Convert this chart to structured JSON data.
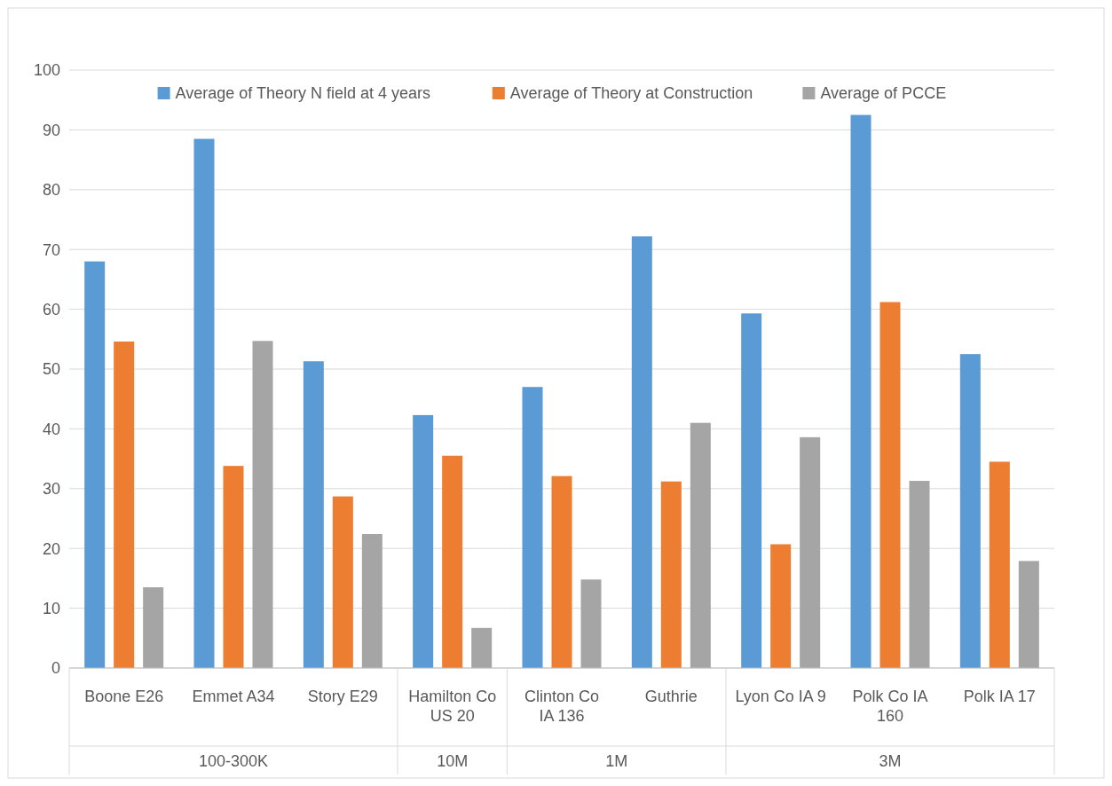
{
  "chart_data": {
    "type": "bar",
    "categories": [
      "Boone E26",
      "Emmet A34",
      "Story E29",
      "Hamilton Co US 20",
      "Clinton Co IA 136",
      "Guthrie",
      "Lyon Co IA 9",
      "Polk Co IA 160",
      "Polk IA 17"
    ],
    "series": [
      {
        "name": "Average of Theory N field at 4 years",
        "color": "#5b9bd5",
        "values": [
          68,
          88.5,
          51.3,
          42.3,
          47,
          72.2,
          59.3,
          92.5,
          52.5
        ]
      },
      {
        "name": "Average of Theory at Construction",
        "color": "#ed7d31",
        "values": [
          54.6,
          33.8,
          28.7,
          35.5,
          32.1,
          31.2,
          20.7,
          61.2,
          34.5
        ]
      },
      {
        "name": "Average of PCCE",
        "color": "#a5a5a5",
        "values": [
          13.5,
          54.7,
          22.4,
          6.7,
          14.8,
          41,
          38.6,
          31.3,
          17.9
        ]
      }
    ],
    "ylim": [
      0,
      100
    ],
    "yticks": [
      0,
      10,
      20,
      30,
      40,
      50,
      60,
      70,
      80,
      90,
      100
    ],
    "grid": "y",
    "legend": "top",
    "annotations": [
      "100-300K",
      "10M",
      "1M",
      "3M"
    ]
  }
}
